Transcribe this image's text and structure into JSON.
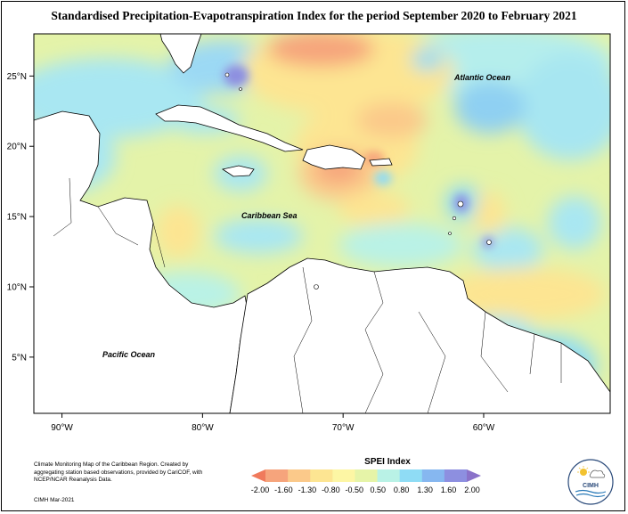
{
  "title": "Standardised Precipitation-Evapotranspiration Index for the period September 2020 to February 2021",
  "map": {
    "lon_range": [
      -92,
      -51
    ],
    "lat_range": [
      1,
      28
    ],
    "lon_ticks": [
      {
        "value": -90,
        "label": "90°W"
      },
      {
        "value": -80,
        "label": "80°W"
      },
      {
        "value": -70,
        "label": "70°W"
      },
      {
        "value": -60,
        "label": "60°W"
      }
    ],
    "lat_ticks": [
      {
        "value": 25,
        "label": "25°N"
      },
      {
        "value": 20,
        "label": "20°N"
      },
      {
        "value": 15,
        "label": "15°N"
      },
      {
        "value": 10,
        "label": "10°N"
      },
      {
        "value": 5,
        "label": "5°N"
      }
    ],
    "ocean_labels": {
      "atlantic": "Atlantic Ocean",
      "caribbean": "Caribbean Sea",
      "pacific": "Pacific Ocean"
    }
  },
  "legend": {
    "title": "SPEI Index",
    "ticks": [
      "-2.00",
      "-1.60",
      "-1.30",
      "-0.80",
      "-0.50",
      "0.50",
      "0.80",
      "1.30",
      "1.60",
      "2.00"
    ],
    "colors": [
      "#f07a5c",
      "#f6a47c",
      "#fbc98a",
      "#fde592",
      "#fdf6a4",
      "#e6f4a8",
      "#b9f2e6",
      "#8fdcf5",
      "#86b7f0",
      "#8d8fe0",
      "#8a72c9"
    ]
  },
  "credits": {
    "text": "Climate Monitoring Map of the Caribbean Region. Created by aggregating station based observations, provided by CariCOF, with NCEP/NCAR Reanalysis Data.",
    "date": "CIMH Mar-2021"
  },
  "logo": {
    "text": "CIMH",
    "icon": "cimh-logo-icon"
  }
}
